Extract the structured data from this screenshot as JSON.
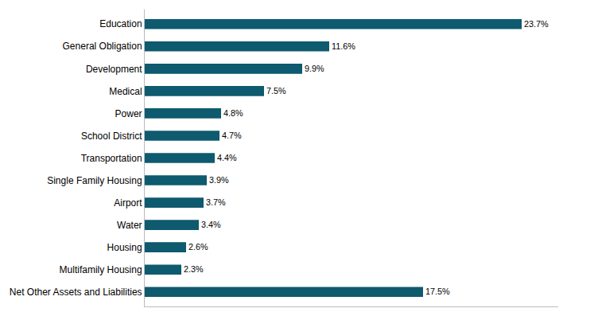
{
  "chart_data": {
    "type": "bar",
    "orientation": "horizontal",
    "categories": [
      "Net Other Assets and Liabilities",
      "Multifamily Housing",
      "Housing",
      "Water",
      "Airport",
      "Single Family Housing",
      "Transportation",
      "School District",
      "Power",
      "Medical",
      "Development",
      "General Obligation",
      "Education"
    ],
    "values": [
      17.5,
      2.3,
      2.6,
      3.4,
      3.7,
      3.9,
      4.4,
      4.7,
      4.8,
      7.5,
      9.9,
      11.6,
      23.7
    ],
    "value_labels": [
      "17.5%",
      "2.3%",
      "2.6%",
      "3.4%",
      "3.7%",
      "3.9%",
      "4.4%",
      "4.7%",
      "4.8%",
      "7.5%",
      "9.9%",
      "11.6%",
      "23.7%"
    ],
    "color": "#0e5a6e",
    "xlim": [
      0,
      26
    ],
    "data_labels": true,
    "tick_labels": "y",
    "grid": false
  }
}
